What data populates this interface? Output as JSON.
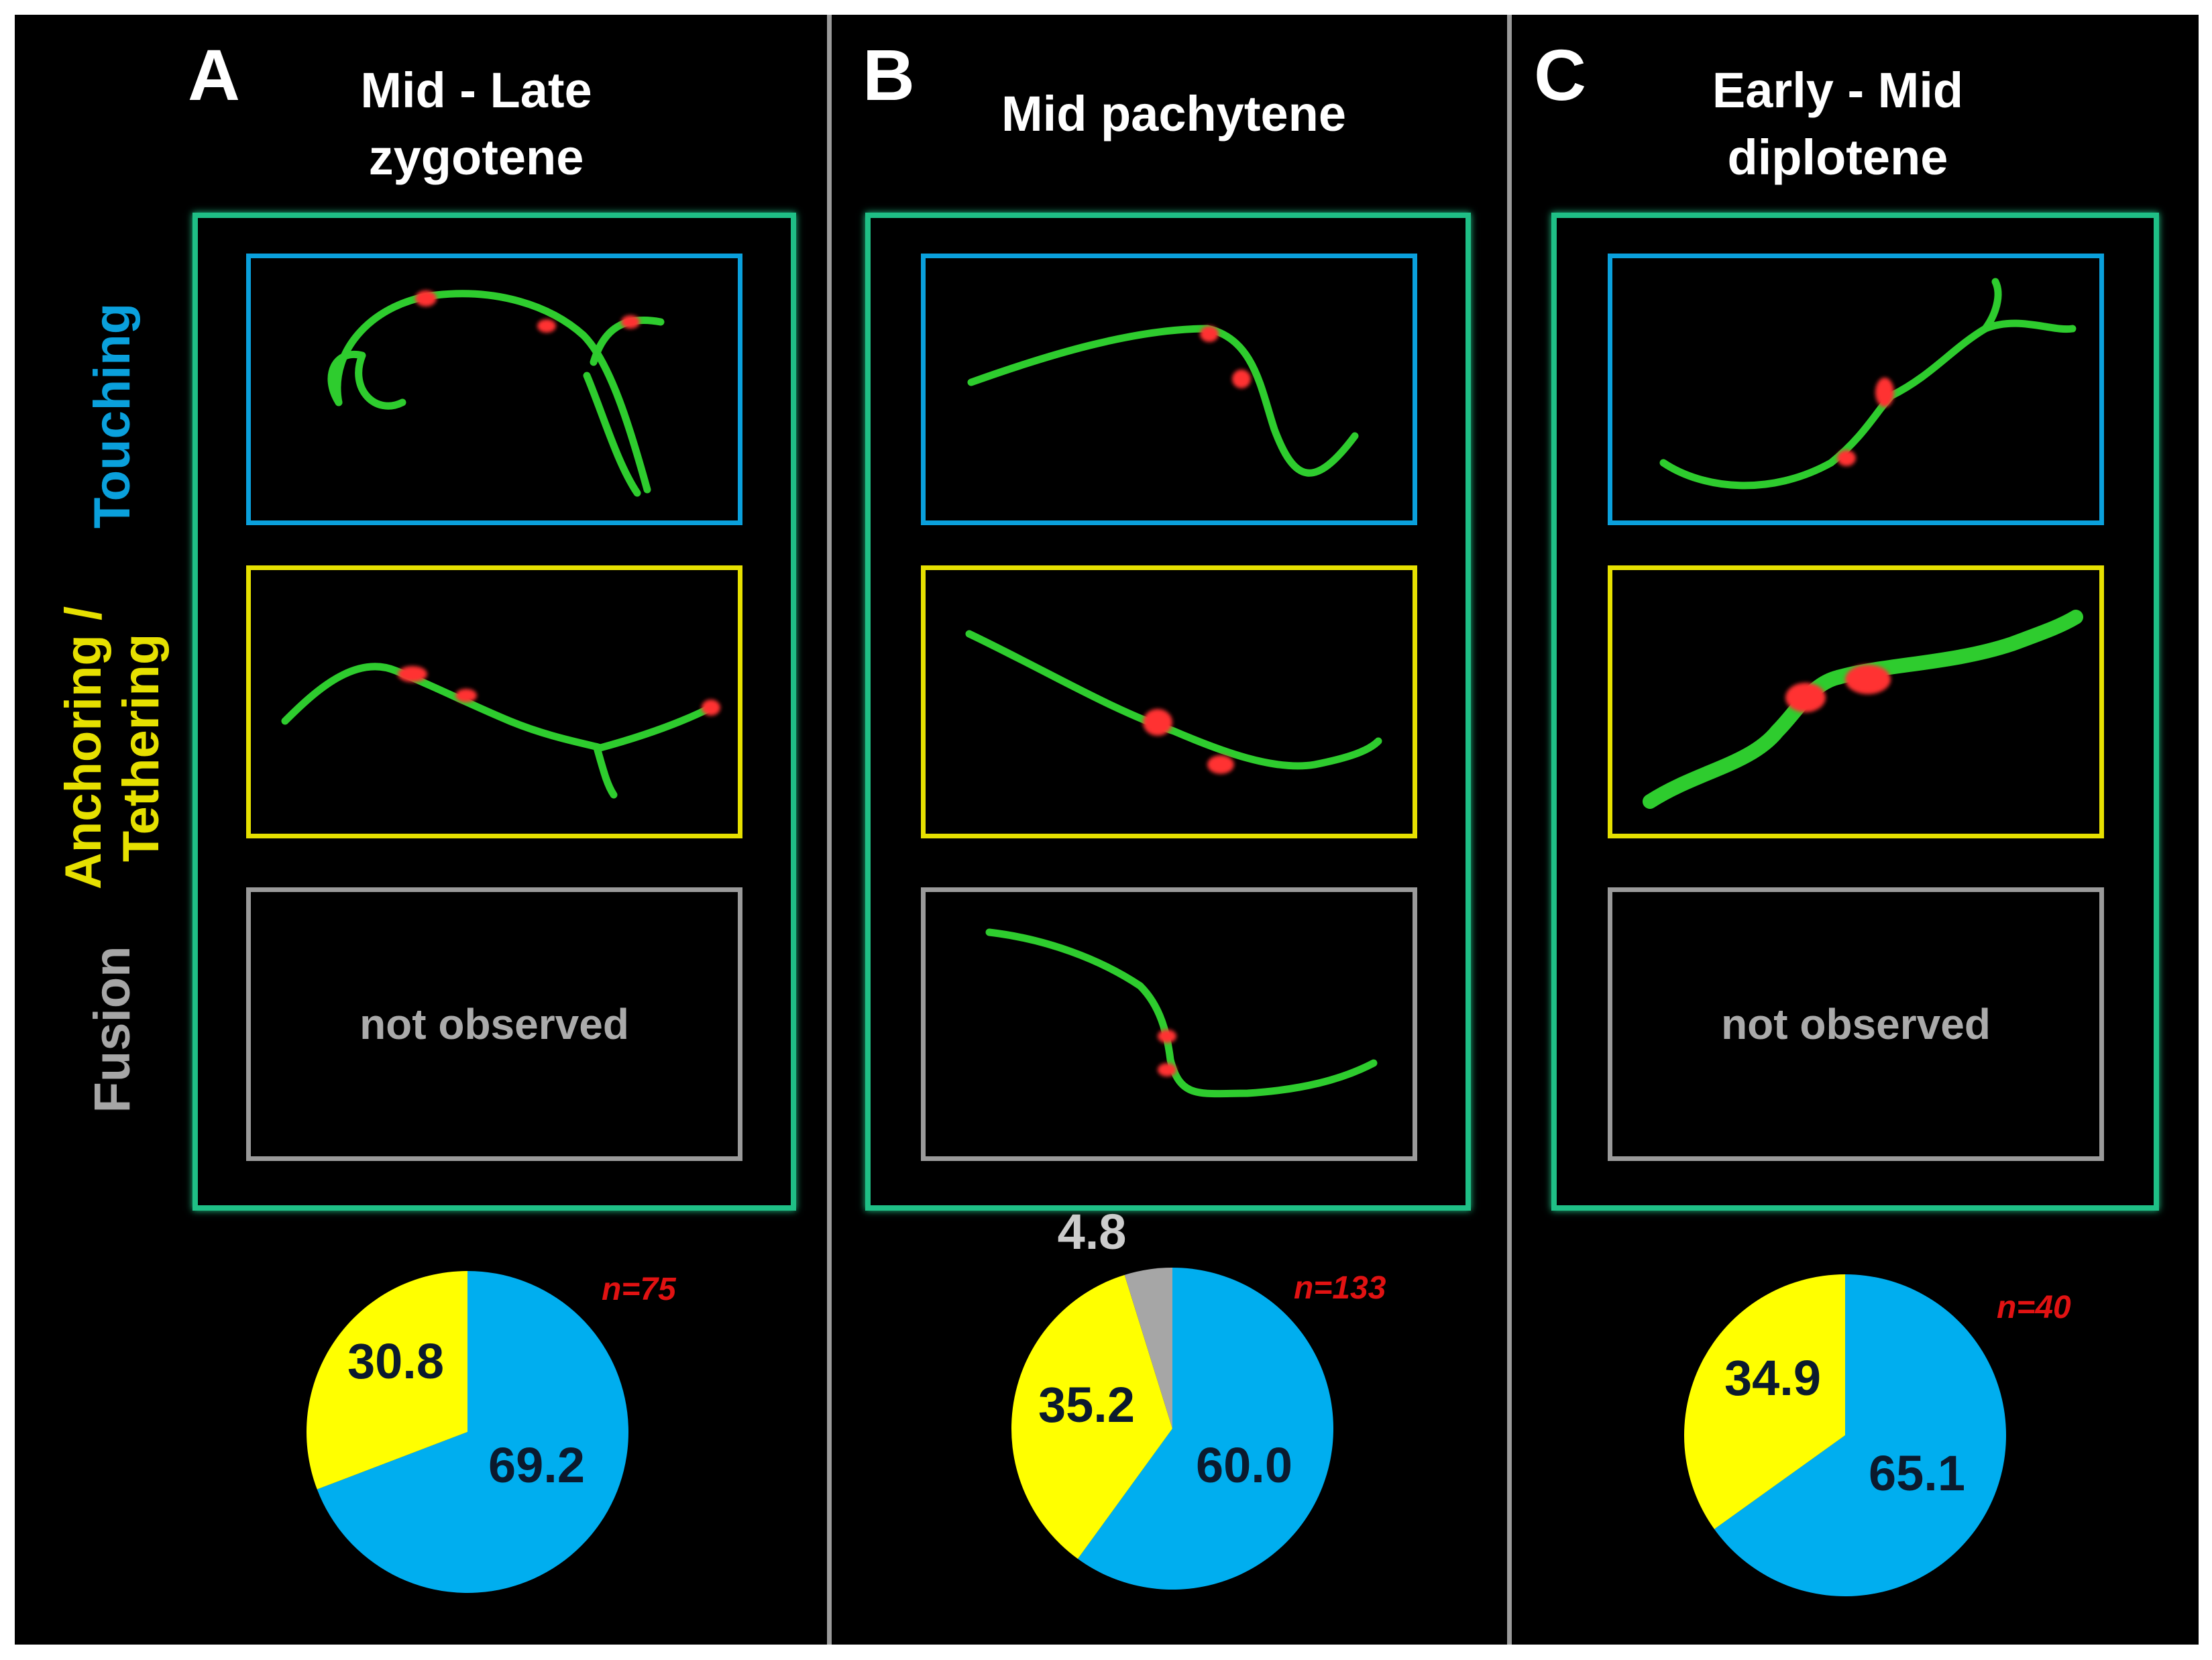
{
  "row_labels": {
    "touching": "Touching",
    "anchoring_line1": "Anchoring /",
    "anchoring_line2": "Tethering",
    "fusion": "Fusion"
  },
  "panels": [
    {
      "letter": "A",
      "title_line1": "Mid - Late",
      "title_line2": "zygotene",
      "fusion_text": "not observed",
      "n_label": "n=75"
    },
    {
      "letter": "B",
      "title_line1": "Mid pachytene",
      "title_line2": "",
      "fusion_text": "",
      "n_label": "n=133"
    },
    {
      "letter": "C",
      "title_line1": "Early - Mid",
      "title_line2": "diplotene",
      "fusion_text": "not observed",
      "n_label": "n=40"
    }
  ],
  "colors": {
    "touching": "#00aeef",
    "anchoring": "#ffff00",
    "fusion": "#a6a6a6",
    "frame_green": "#1fbf86",
    "n_red": "#e11212"
  },
  "chart_data": [
    {
      "type": "pie",
      "panel": "A",
      "title": "Mid - Late zygotene",
      "n": 75,
      "labels": [
        "Touching",
        "Anchoring / Tethering"
      ],
      "values": [
        69.2,
        30.8
      ],
      "value_labels": [
        "69.2",
        "30.8"
      ]
    },
    {
      "type": "pie",
      "panel": "B",
      "title": "Mid pachytene",
      "n": 133,
      "labels": [
        "Touching",
        "Anchoring / Tethering",
        "Fusion"
      ],
      "values": [
        60.0,
        35.2,
        4.8
      ],
      "value_labels": [
        "60.0",
        "35.2",
        "4.8"
      ]
    },
    {
      "type": "pie",
      "panel": "C",
      "title": "Early - Mid diplotene",
      "n": 40,
      "labels": [
        "Touching",
        "Anchoring / Tethering"
      ],
      "values": [
        65.1,
        34.9
      ],
      "value_labels": [
        "65.1",
        "34.9"
      ]
    }
  ]
}
